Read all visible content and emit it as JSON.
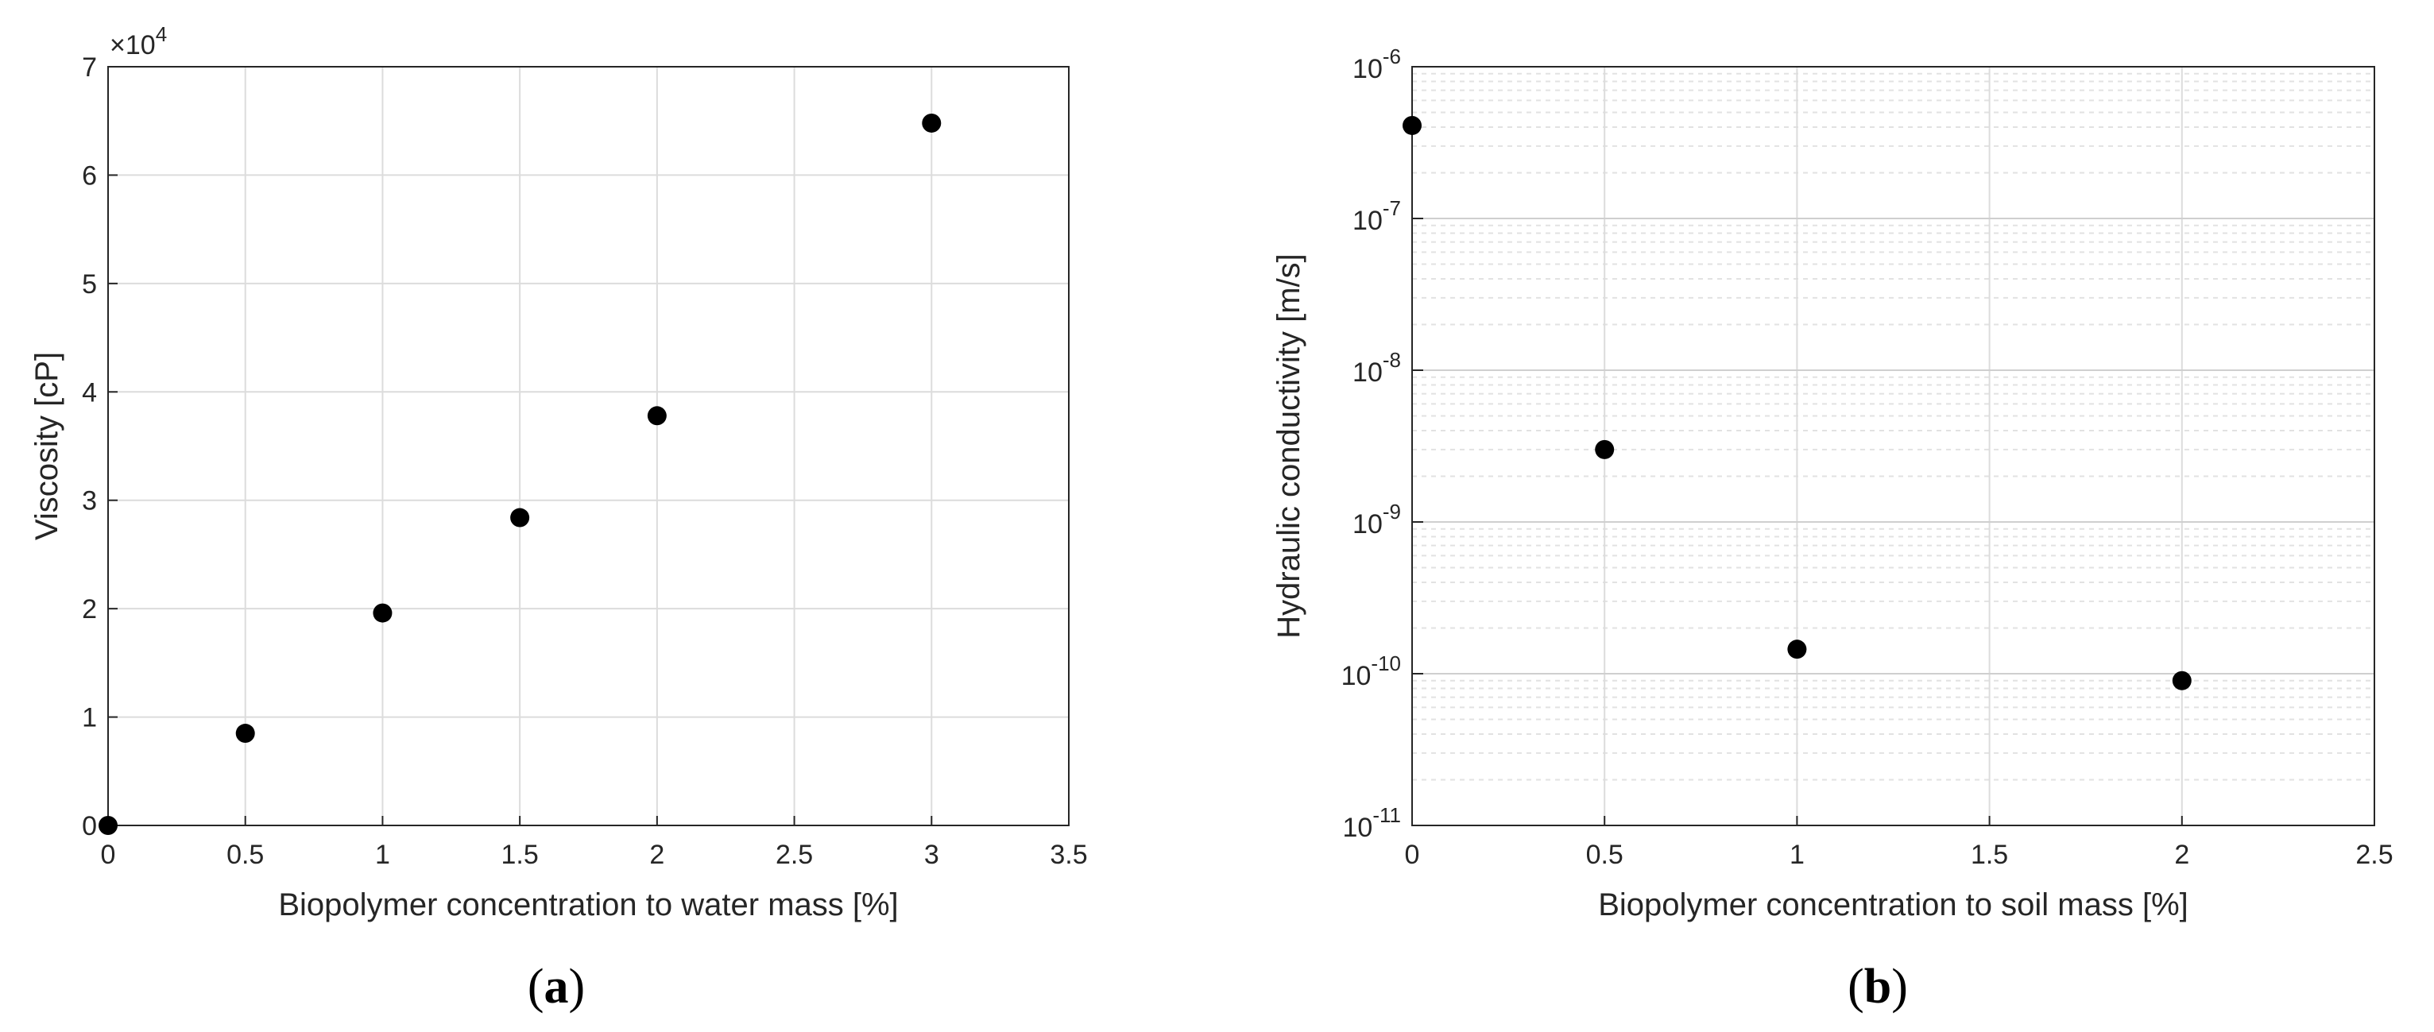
{
  "chart_data": [
    {
      "type": "scatter",
      "panel_label": "a",
      "xlabel": "Biopolymer concentration to water mass [%]",
      "ylabel": "Viscosity [cP]",
      "y_exponent_label": "×10",
      "y_exponent_power": "4",
      "xlim": [
        0,
        3.5
      ],
      "ylim": [
        0,
        70000
      ],
      "xticks": [
        0,
        0.5,
        1,
        1.5,
        2,
        2.5,
        3,
        3.5
      ],
      "xtick_labels": [
        "0",
        "0.5",
        "1",
        "1.5",
        "2",
        "2.5",
        "3",
        "3.5"
      ],
      "yticks": [
        0,
        10000,
        20000,
        30000,
        40000,
        50000,
        60000,
        70000
      ],
      "ytick_labels": [
        "0",
        "1",
        "2",
        "3",
        "4",
        "5",
        "6",
        "7"
      ],
      "grid": true,
      "marker_color": "#000000",
      "points": [
        {
          "x": 0,
          "y": 0
        },
        {
          "x": 0.5,
          "y": 8500
        },
        {
          "x": 1,
          "y": 19600
        },
        {
          "x": 1.5,
          "y": 28400
        },
        {
          "x": 2,
          "y": 37800
        },
        {
          "x": 3,
          "y": 64800
        }
      ]
    },
    {
      "type": "scatter",
      "panel_label": "b",
      "xlabel": "Biopolymer concentration to soil mass [%]",
      "ylabel": "Hydraulic conductivity [m/s]",
      "y_scale": "log",
      "xlim": [
        0,
        2.5
      ],
      "ylim": [
        1e-11,
        1e-06
      ],
      "xticks": [
        0,
        0.5,
        1,
        1.5,
        2,
        2.5
      ],
      "xtick_labels": [
        "0",
        "0.5",
        "1",
        "1.5",
        "2",
        "2.5"
      ],
      "ytick_exponents": [
        -11,
        -10,
        -9,
        -8,
        -7,
        -6
      ],
      "ytick_base": "10",
      "ytick_powers": [
        "-11",
        "-10",
        "-9",
        "-8",
        "-7",
        "-6"
      ],
      "grid": true,
      "minor_grid": true,
      "marker_color": "#000000",
      "points": [
        {
          "x": 0,
          "y": 4.1e-07
        },
        {
          "x": 0.5,
          "y": 3e-09
        },
        {
          "x": 1,
          "y": 1.45e-10
        },
        {
          "x": 2,
          "y": 9e-11
        }
      ]
    }
  ]
}
